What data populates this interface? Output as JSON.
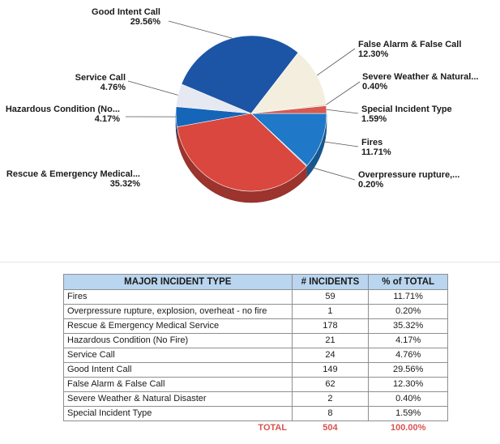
{
  "chart_data": {
    "type": "pie",
    "slices": [
      {
        "label": "Fires",
        "pie_label": "Fires",
        "percent": 11.71,
        "pct_text": "11.71%",
        "color": "#1f78c8"
      },
      {
        "label": "Overpressure rupture, explosion, overheat - no fire",
        "pie_label": "Overpressure  rupture,...",
        "percent": 0.2,
        "pct_text": "0.20%",
        "color": "#6a9fd4"
      },
      {
        "label": "Rescue & Emergency Medical Service",
        "pie_label": "Rescue & Emergency Medical...",
        "percent": 35.32,
        "pct_text": "35.32%",
        "color": "#d9473f"
      },
      {
        "label": "Hazardous Condition (No Fire)",
        "pie_label": "Hazardous Condition (No...",
        "percent": 4.17,
        "pct_text": "4.17%",
        "color": "#1565b8"
      },
      {
        "label": "Service Call",
        "pie_label": "Service Call",
        "percent": 4.76,
        "pct_text": "4.76%",
        "color": "#e6e8f2"
      },
      {
        "label": "Good Intent Call",
        "pie_label": "Good Intent Call",
        "percent": 29.56,
        "pct_text": "29.56%",
        "color": "#1c55a6"
      },
      {
        "label": "False Alarm & False Call",
        "pie_label": "False Alarm & False Call",
        "percent": 12.3,
        "pct_text": "12.30%",
        "color": "#f3eedd"
      },
      {
        "label": "Severe Weather & Natural Disaster",
        "pie_label": "Severe  Weather  &  Natural...",
        "percent": 0.4,
        "pct_text": "0.40%",
        "color": "#e8d6cc"
      },
      {
        "label": "Special Incident Type",
        "pie_label": "Special Incident Type",
        "percent": 1.59,
        "pct_text": "1.59%",
        "color": "#d65a50"
      }
    ]
  },
  "table": {
    "headers": {
      "type": "MAJOR INCIDENT TYPE",
      "incidents": "# INCIDENTS",
      "percent": "% of TOTAL"
    },
    "rows": [
      {
        "type": "Fires",
        "incidents": "59",
        "percent": "11.71%"
      },
      {
        "type": "Overpressure rupture, explosion, overheat - no fire",
        "incidents": "1",
        "percent": "0.20%"
      },
      {
        "type": "Rescue & Emergency Medical Service",
        "incidents": "178",
        "percent": "35.32%"
      },
      {
        "type": "Hazardous Condition (No Fire)",
        "incidents": "21",
        "percent": "4.17%"
      },
      {
        "type": "Service Call",
        "incidents": "24",
        "percent": "4.76%"
      },
      {
        "type": "Good Intent Call",
        "incidents": "149",
        "percent": "29.56%"
      },
      {
        "type": "False Alarm & False Call",
        "incidents": "62",
        "percent": "12.30%"
      },
      {
        "type": "Severe Weather & Natural Disaster",
        "incidents": "2",
        "percent": "0.40%"
      },
      {
        "type": "Special Incident Type",
        "incidents": "8",
        "percent": "1.59%"
      }
    ],
    "total": {
      "label": "TOTAL",
      "incidents": "504",
      "percent": "100.00%"
    }
  }
}
